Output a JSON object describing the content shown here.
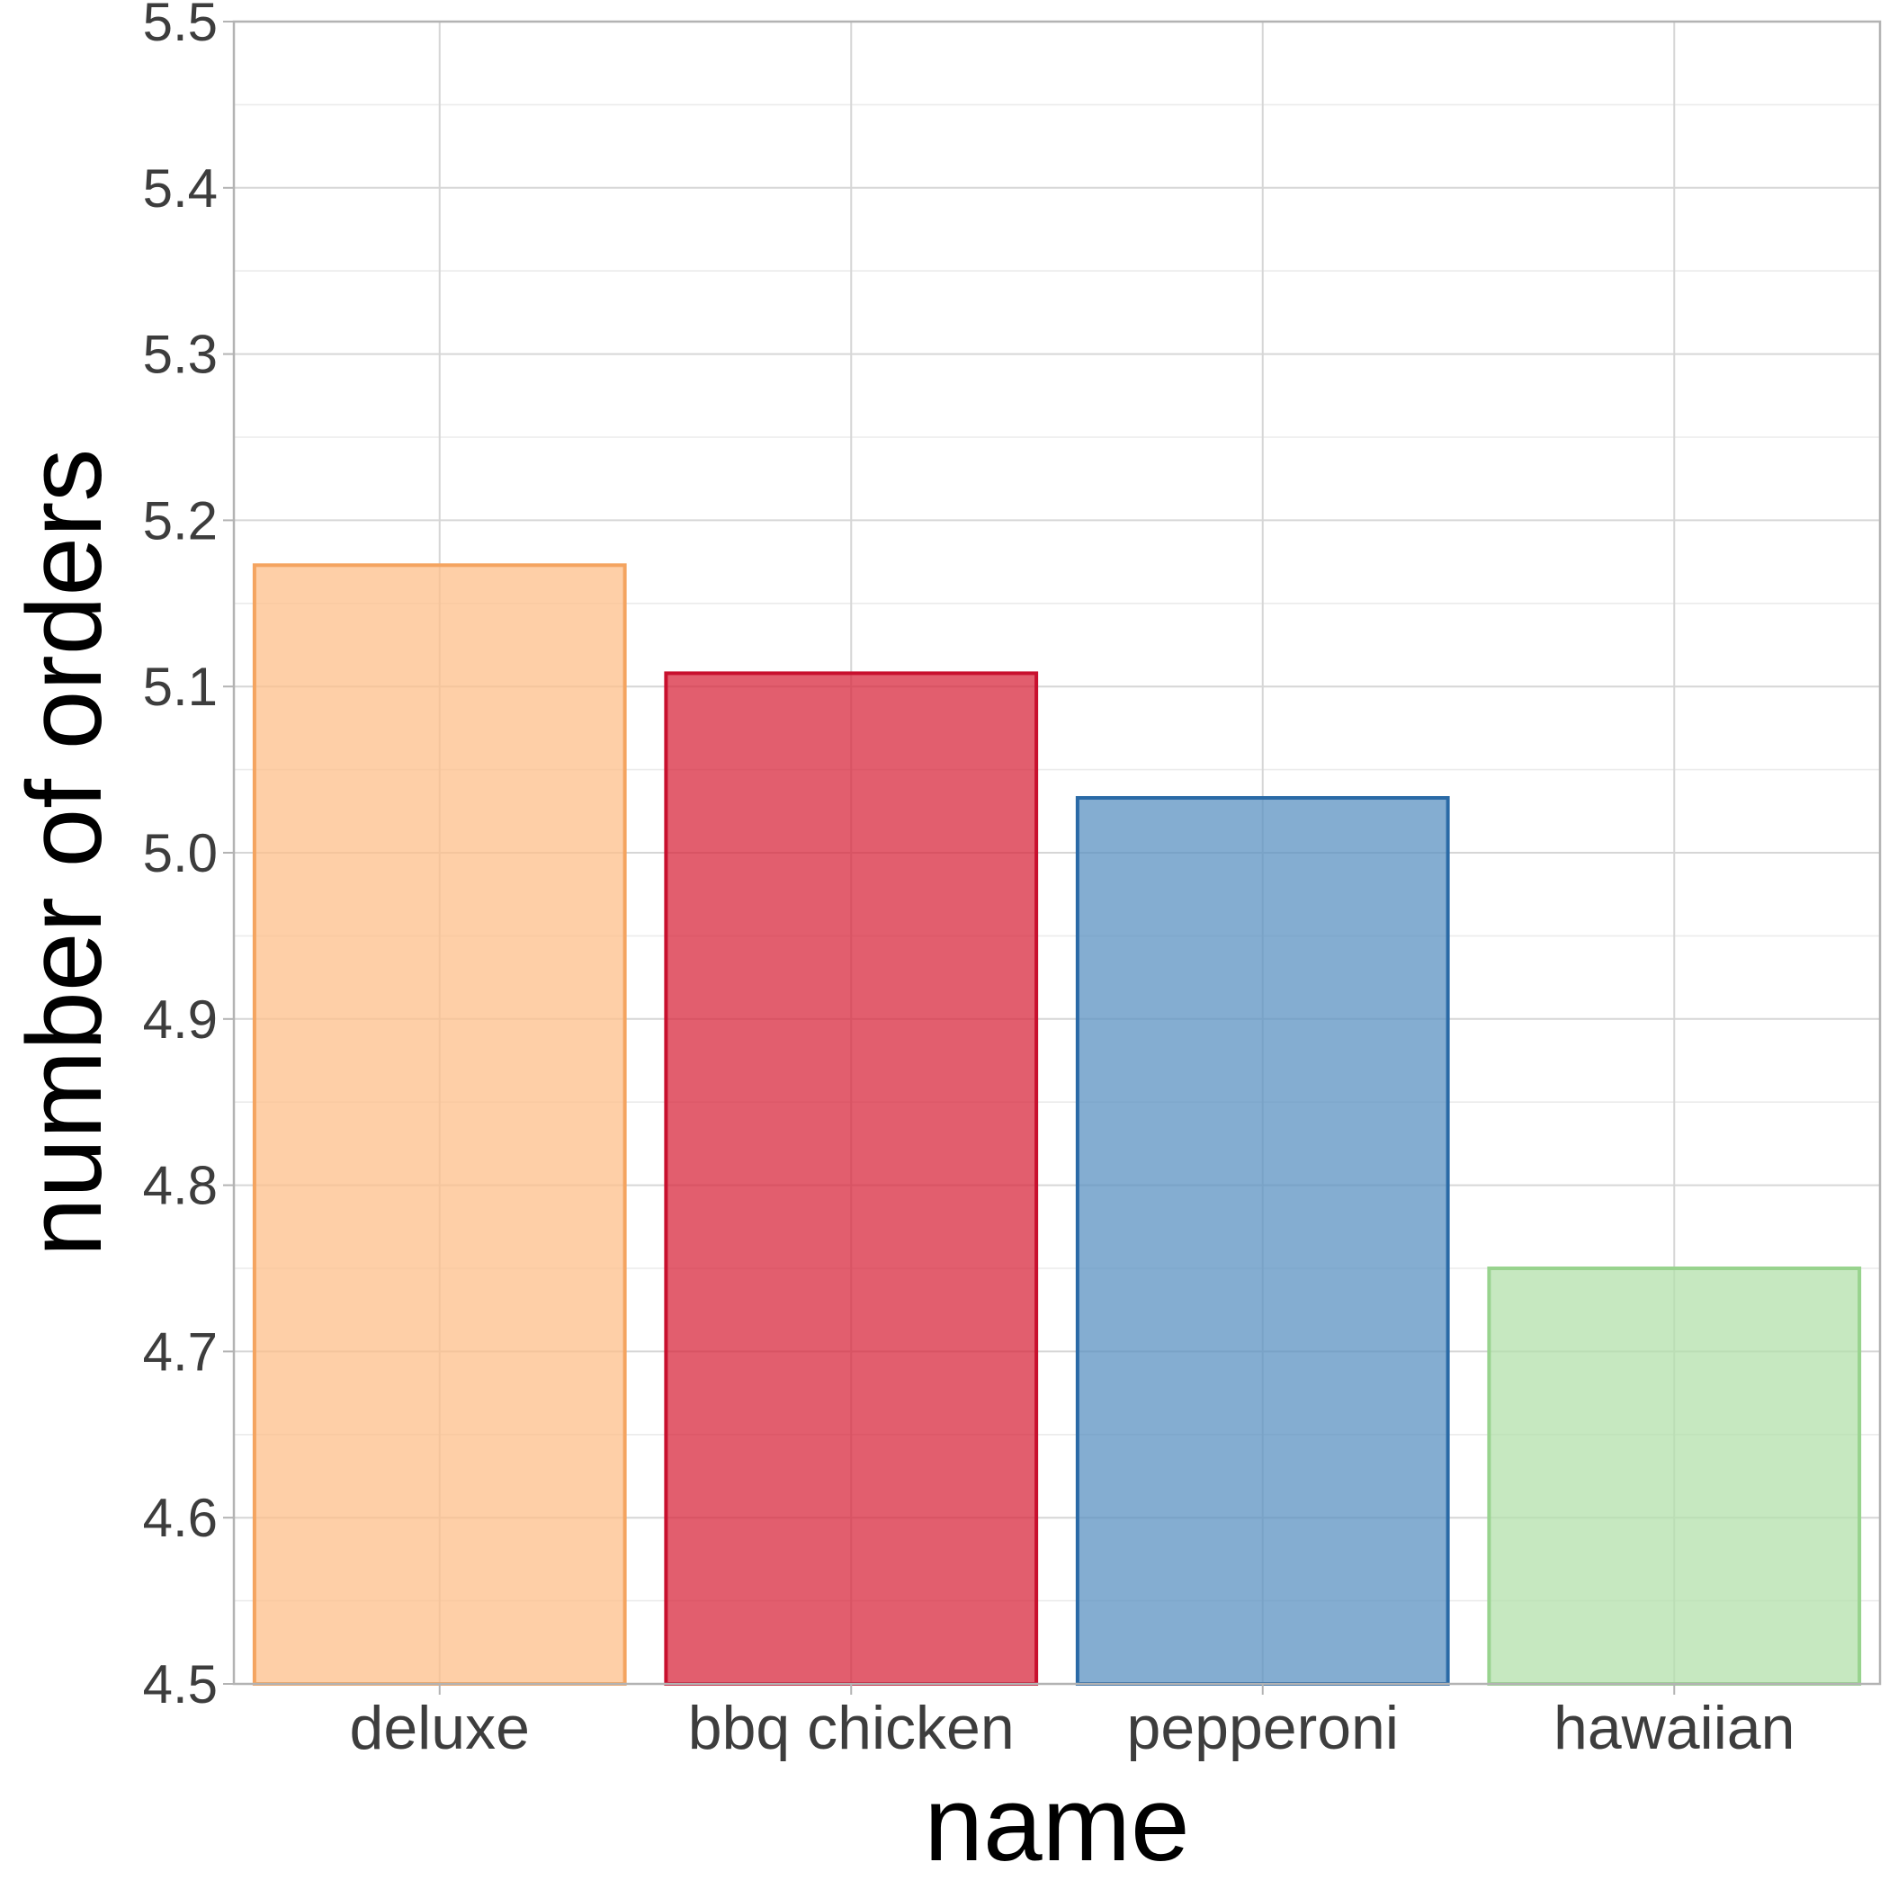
{
  "chart_data": {
    "type": "bar",
    "title": "",
    "xlabel": "name",
    "ylabel": "number of orders",
    "categories": [
      "deluxe",
      "bbq chicken",
      "pepperoni",
      "hawaiian"
    ],
    "values": [
      5.173,
      5.108,
      5.033,
      4.75
    ],
    "ylim": [
      4.5,
      5.5
    ],
    "yticks": [
      "4.5",
      "4.6",
      "4.7",
      "4.8",
      "4.9",
      "5.0",
      "5.1",
      "5.2",
      "5.3",
      "5.4",
      "5.5"
    ],
    "grid": true,
    "legend": "none",
    "colors": {
      "fills": [
        "#fdbf8a",
        "#d8283e",
        "#5b92c1",
        "#b3e0ab"
      ],
      "outlines": [
        "#f4a460",
        "#c8102e",
        "#2a6aa6",
        "#98d38e"
      ],
      "grid_major": "#d6d6d6",
      "grid_minor": "#ebebeb",
      "panel_border": "#b3b3b3",
      "tick_text": "#3d3d3d"
    }
  }
}
